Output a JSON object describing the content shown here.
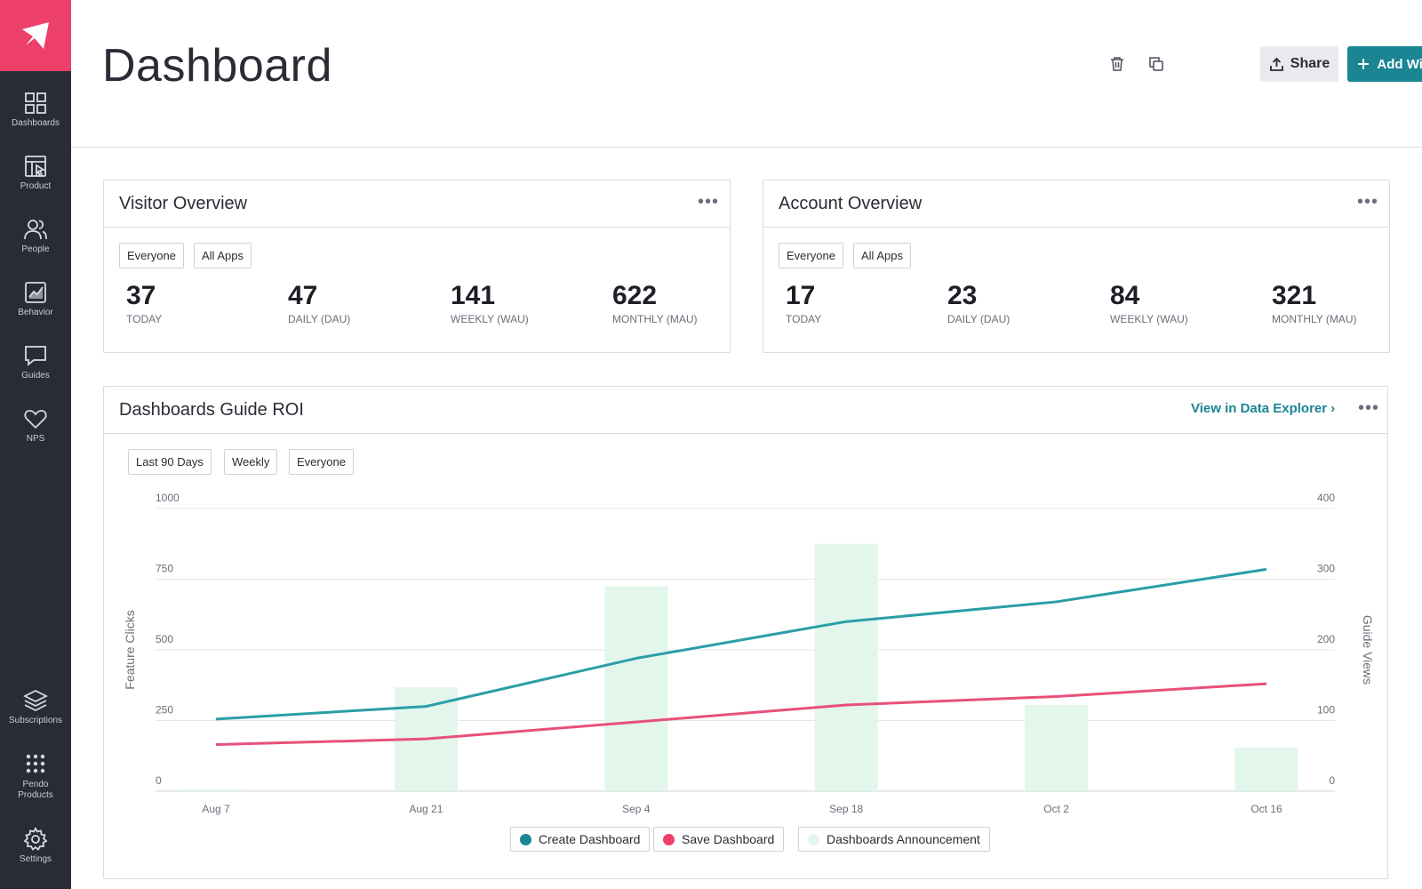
{
  "sidebar": {
    "items": [
      {
        "label": "Dashboards",
        "icon": "grid-icon"
      },
      {
        "label": "Product",
        "icon": "product-icon"
      },
      {
        "label": "People",
        "icon": "people-icon"
      },
      {
        "label": "Behavior",
        "icon": "behavior-icon"
      },
      {
        "label": "Guides",
        "icon": "guides-icon"
      },
      {
        "label": "NPS",
        "icon": "heart-icon"
      }
    ],
    "bottom_items": [
      {
        "label": "Subscriptions",
        "icon": "layers-icon"
      },
      {
        "label": "Pendo Products",
        "icon": "dots-grid-icon"
      },
      {
        "label": "Settings",
        "icon": "gear-icon"
      }
    ]
  },
  "header": {
    "title": "Dashboard",
    "share_label": "Share",
    "add_widget_label": "Add Widget"
  },
  "visitor_overview": {
    "title": "Visitor Overview",
    "filters": [
      "Everyone",
      "All Apps"
    ],
    "metrics": [
      {
        "value": "37",
        "label": "TODAY"
      },
      {
        "value": "47",
        "label": "DAILY (DAU)"
      },
      {
        "value": "141",
        "label": "WEEKLY (WAU)"
      },
      {
        "value": "622",
        "label": "MONTHLY (MAU)"
      }
    ]
  },
  "account_overview": {
    "title": "Account Overview",
    "filters": [
      "Everyone",
      "All Apps"
    ],
    "metrics": [
      {
        "value": "17",
        "label": "TODAY"
      },
      {
        "value": "23",
        "label": "DAILY (DAU)"
      },
      {
        "value": "84",
        "label": "WEEKLY (WAU)"
      },
      {
        "value": "321",
        "label": "MONTHLY (MAU)"
      }
    ]
  },
  "roi": {
    "title": "Dashboards Guide ROI",
    "link_label": "View in Data Explorer ›",
    "filters": [
      "Last 90 Days",
      "Weekly",
      "Everyone"
    ]
  },
  "colors": {
    "brand": "#ec3f6a",
    "accent": "#1a8593",
    "create_line": "#2a9ea6",
    "save_line": "#e8507a",
    "bars": "#e3f6ec"
  },
  "chart_data": {
    "type": "bar+line",
    "categories": [
      "Aug 7",
      "Aug 21",
      "Sep 4",
      "Sep 18",
      "Oct 2",
      "Oct 16"
    ],
    "ylabel": "Feature Clicks",
    "y2label": "Guide Views",
    "ylim": [
      0,
      1000
    ],
    "y2lim": [
      0,
      400
    ],
    "yticks": [
      "0",
      "250",
      "500",
      "750",
      "1000"
    ],
    "y2ticks": [
      "0",
      "100",
      "200",
      "300",
      "400"
    ],
    "grid": true,
    "legend_placement": "bottom",
    "series": [
      {
        "name": "Create Dashboard",
        "type": "line",
        "axis": "left",
        "values": [
          255,
          300,
          470,
          600,
          670,
          785
        ]
      },
      {
        "name": "Save Dashboard",
        "type": "line",
        "axis": "left",
        "values": [
          165,
          185,
          245,
          305,
          335,
          380
        ]
      },
      {
        "name": "Dashboards Announcement",
        "type": "bar",
        "axis": "right",
        "values": [
          3,
          147,
          290,
          350,
          122,
          62
        ]
      }
    ]
  }
}
